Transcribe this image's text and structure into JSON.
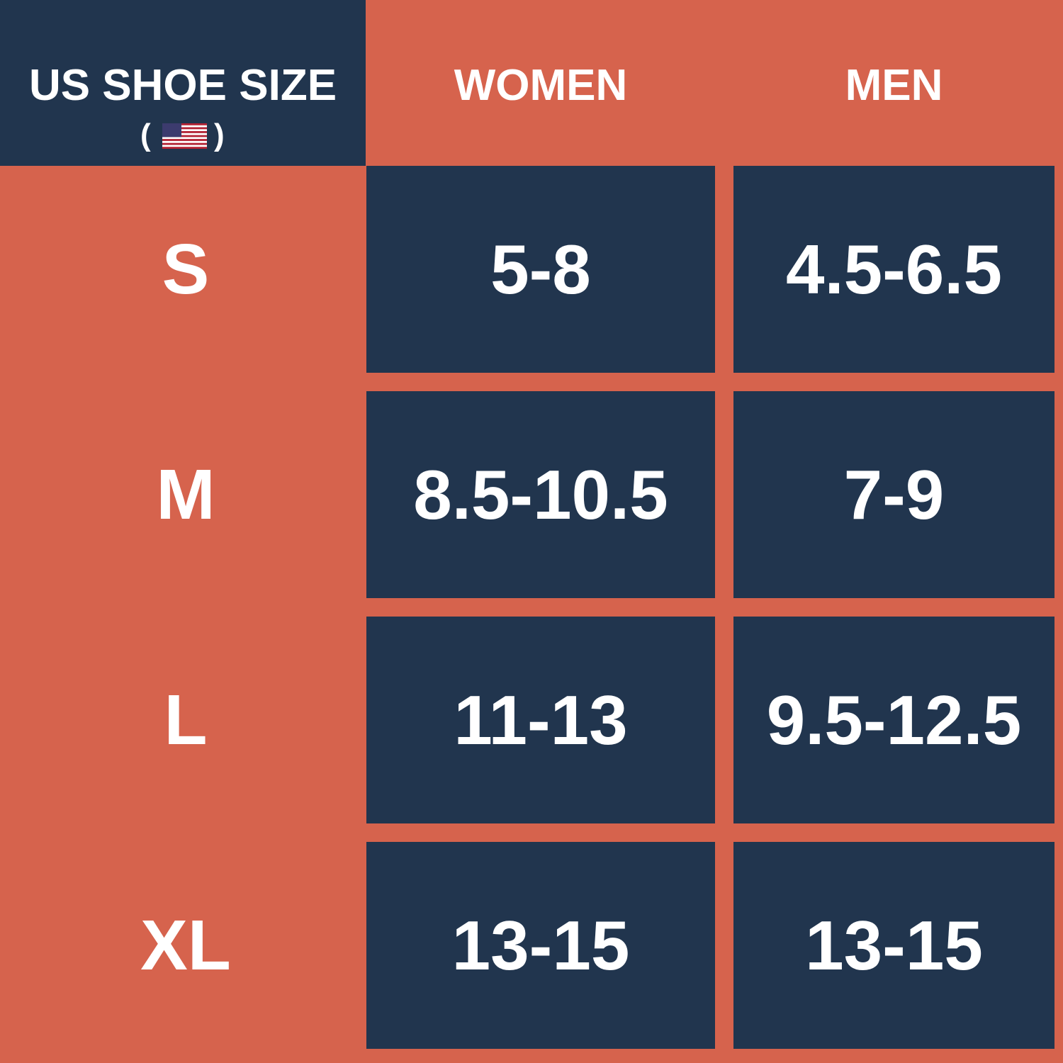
{
  "header": {
    "title": "US SHOE SIZE",
    "flag_brackets": [
      "(",
      ")"
    ],
    "columns": [
      "WOMEN",
      "MEN"
    ]
  },
  "table": {
    "rows": [
      [
        "S",
        "5-8",
        "4.5-6.5"
      ],
      [
        "M",
        "8.5-10.5",
        "7-9"
      ],
      [
        "L",
        "11-13",
        "9.5-12.5"
      ],
      [
        "XL",
        "13-15",
        "13-15"
      ]
    ]
  }
}
